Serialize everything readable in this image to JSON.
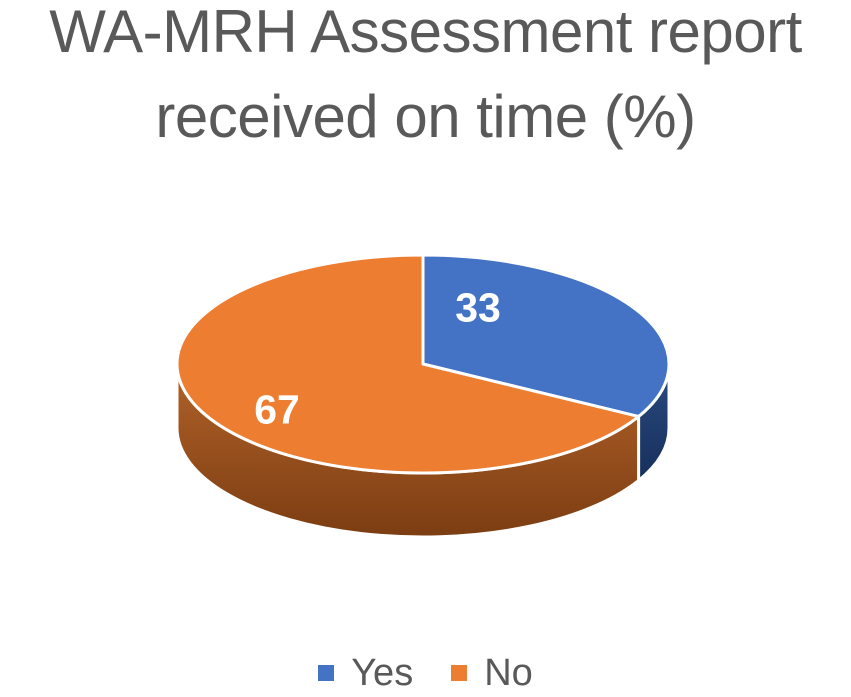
{
  "chart_data": {
    "type": "pie",
    "style": "3d",
    "title": "WA-MRH Assessment report received on time (%)",
    "labels": [
      "Yes",
      "No"
    ],
    "values": [
      33,
      67
    ],
    "unit": "%",
    "colors": [
      "#4472C4",
      "#ED7D31"
    ],
    "side_gradients": [
      [
        "#2A4A80",
        "#17305C"
      ],
      [
        "#B2622A",
        "#7C3D12"
      ]
    ],
    "data_label_color": "#FFFFFF",
    "title_color": "#595959",
    "legend_text_color": "#595959",
    "legend_position": "bottom",
    "background": "#FFFFFF",
    "start_angle_deg": 0,
    "direction": "clockwise"
  }
}
